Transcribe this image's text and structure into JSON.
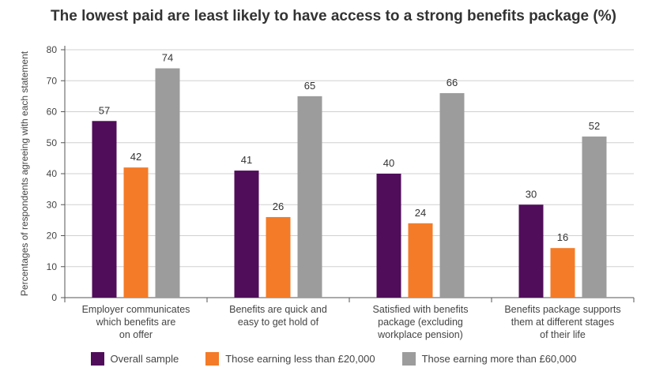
{
  "chart_data": {
    "type": "bar",
    "title": "The lowest paid are least likely to have access to a strong benefits package (%)",
    "ylabel": "Percentages of respondents agreeing with each statement",
    "xlabel": "",
    "ylim": [
      0,
      80
    ],
    "yticks": [
      0,
      10,
      20,
      30,
      40,
      50,
      60,
      70,
      80
    ],
    "grid": true,
    "legend": "bottom",
    "categories": [
      [
        "Employer communicates",
        "which benefits are",
        "on offer"
      ],
      [
        "Benefits are quick and",
        "easy to get hold of"
      ],
      [
        "Satisfied with benefits",
        "package (excluding",
        "workplace pension)"
      ],
      [
        "Benefits package supports",
        "them at different stages",
        "of their life"
      ]
    ],
    "series": [
      {
        "name": "Overall sample",
        "color": "#500d5a",
        "values": [
          57,
          41,
          40,
          30
        ]
      },
      {
        "name": "Those earning less than £20,000",
        "color": "#f47b27",
        "values": [
          42,
          26,
          24,
          16
        ]
      },
      {
        "name": "Those earning more than £60,000",
        "color": "#9c9c9c",
        "values": [
          74,
          65,
          66,
          52
        ]
      }
    ]
  }
}
